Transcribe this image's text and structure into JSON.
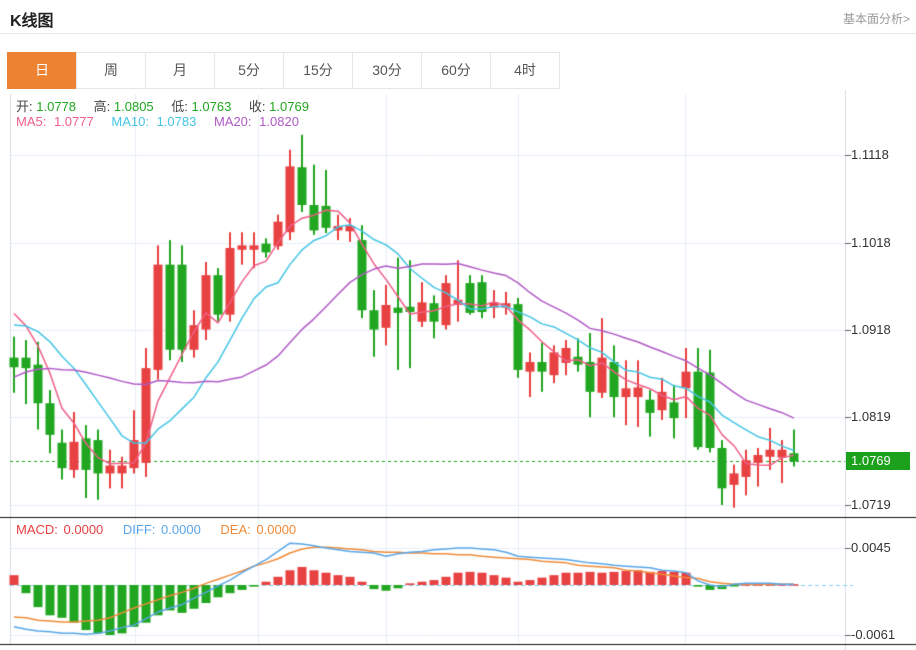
{
  "header": {
    "title": "K线图",
    "link": "基本面分析>"
  },
  "tabs": {
    "items": [
      {
        "label": "日",
        "active": true
      },
      {
        "label": "周",
        "active": false
      },
      {
        "label": "月",
        "active": false
      },
      {
        "label": "5分",
        "active": false
      },
      {
        "label": "15分",
        "active": false
      },
      {
        "label": "30分",
        "active": false
      },
      {
        "label": "60分",
        "active": false
      },
      {
        "label": "4时",
        "active": false
      }
    ]
  },
  "legend": {
    "ohlc": {
      "open_label": "开:",
      "open": "1.0778",
      "high_label": "高:",
      "high": "1.0805",
      "low_label": "低:",
      "low": "1.0763",
      "close_label": "收:",
      "close": "1.0769"
    },
    "ma": {
      "ma5_label": "MA5:",
      "ma5": "1.0777",
      "ma10_label": "MA10:",
      "ma10": "1.0783",
      "ma20_label": "MA20:",
      "ma20": "1.0820"
    }
  },
  "macd_legend": {
    "macd_label": "MACD:",
    "macd": "0.0000",
    "diff_label": "DIFF:",
    "diff": "0.0000",
    "dea_label": "DEA:",
    "dea": "0.0000"
  },
  "colors": {
    "up_red": "#e84141",
    "down_green": "#21a621",
    "badge_green": "#1ba11b",
    "ma5_pink": "#ef5f87",
    "ma10_cyan": "#45c5e5",
    "ma20_purple": "#b05ac6",
    "diff_blue": "#58a6e8",
    "dea_orange": "#ef8b3a",
    "tab_orange": "#ee8233",
    "grid": "#e9eef6",
    "axis": "#d9dde3",
    "zero_dash": "#8fcdf2",
    "separator": "#111111"
  },
  "chart_data": {
    "type": "candlestick+macd",
    "price_axis": {
      "ticks": [
        1.1118,
        1.1018,
        1.0918,
        1.0819,
        1.0719
      ],
      "top_value": 1.1118,
      "bottom_value": 1.0719,
      "current_price": 1.0769
    },
    "ma_periods": [
      5,
      10,
      20
    ],
    "prehistory_closes": [
      1.076,
      1.077,
      1.078,
      1.079,
      1.08,
      1.081,
      1.082,
      1.083,
      1.084,
      1.0855,
      1.0885,
      1.09,
      1.0915,
      1.0925,
      1.093,
      1.0945,
      1.095,
      1.0955,
      1.096
    ],
    "candles": [
      [
        1.0887,
        1.0911,
        1.0847,
        1.0876
      ],
      [
        1.0887,
        1.0907,
        1.0834,
        1.0875
      ],
      [
        1.0879,
        1.0905,
        1.0805,
        1.0835
      ],
      [
        1.0835,
        1.085,
        1.0778,
        1.0799
      ],
      [
        1.079,
        1.0805,
        1.0748,
        1.0761
      ],
      [
        1.0759,
        1.0825,
        1.075,
        1.0791
      ],
      [
        1.0795,
        1.081,
        1.0727,
        1.0759
      ],
      [
        1.0793,
        1.0805,
        1.0725,
        1.0755
      ],
      [
        1.0755,
        1.0782,
        1.0738,
        1.0764
      ],
      [
        1.0755,
        1.0774,
        1.0738,
        1.0764
      ],
      [
        1.0761,
        1.0827,
        1.0755,
        1.0793
      ],
      [
        1.0767,
        1.0898,
        1.0751,
        1.0875
      ],
      [
        1.0873,
        1.1015,
        1.0862,
        1.0993
      ],
      [
        1.0993,
        1.1021,
        1.0884,
        1.0896
      ],
      [
        1.0993,
        1.1015,
        1.0882,
        1.0896
      ],
      [
        1.0896,
        1.0941,
        1.0887,
        1.0924
      ],
      [
        1.0919,
        1.0996,
        1.0907,
        1.0981
      ],
      [
        1.0981,
        1.0989,
        1.0928,
        1.0936
      ],
      [
        1.0936,
        1.103,
        1.0928,
        1.1012
      ],
      [
        1.101,
        1.103,
        1.0993,
        1.1015
      ],
      [
        1.101,
        1.103,
        1.0989,
        1.1015
      ],
      [
        1.1017,
        1.1023,
        1.1001,
        1.1007
      ],
      [
        1.1014,
        1.105,
        1.101,
        1.1042
      ],
      [
        1.103,
        1.1124,
        1.1021,
        1.1105
      ],
      [
        1.1104,
        1.1141,
        1.1053,
        1.1061
      ],
      [
        1.1061,
        1.1107,
        1.1027,
        1.1032
      ],
      [
        1.106,
        1.1101,
        1.1029,
        1.1035
      ],
      [
        1.1032,
        1.105,
        1.1021,
        1.1037
      ],
      [
        1.1031,
        1.1046,
        1.1019,
        1.1037
      ],
      [
        1.1021,
        1.1038,
        1.0932,
        1.0941
      ],
      [
        1.0941,
        1.0964,
        1.0888,
        1.0919
      ],
      [
        1.0921,
        1.097,
        1.0901,
        1.0947
      ],
      [
        1.0944,
        1.1001,
        1.0873,
        1.0938
      ],
      [
        1.0945,
        1.0998,
        1.0875,
        1.0939
      ],
      [
        1.0928,
        1.0973,
        1.0922,
        1.095
      ],
      [
        1.0949,
        1.0958,
        1.0909,
        1.0928
      ],
      [
        1.0924,
        1.0981,
        1.0919,
        1.0972
      ],
      [
        1.0947,
        1.0998,
        1.0928,
        1.0953
      ],
      [
        1.0972,
        1.0981,
        1.0936,
        1.0938
      ],
      [
        1.0973,
        1.0981,
        1.0932,
        1.0939
      ],
      [
        1.0944,
        1.0964,
        1.0932,
        1.095
      ],
      [
        1.0944,
        1.0962,
        1.0936,
        1.0949
      ],
      [
        1.0948,
        1.0955,
        1.0864,
        1.0873
      ],
      [
        1.0871,
        1.0893,
        1.0842,
        1.0882
      ],
      [
        1.0882,
        1.0904,
        1.0848,
        1.0871
      ],
      [
        1.0867,
        1.0901,
        1.0858,
        1.0893
      ],
      [
        1.0881,
        1.0907,
        1.0867,
        1.0898
      ],
      [
        1.0888,
        1.0909,
        1.0871,
        1.0879
      ],
      [
        1.0882,
        1.0915,
        1.0819,
        1.0848
      ],
      [
        1.0847,
        1.0932,
        1.0841,
        1.0887
      ],
      [
        1.0882,
        1.0901,
        1.0819,
        1.0842
      ],
      [
        1.0842,
        1.0884,
        1.081,
        1.0852
      ],
      [
        1.0842,
        1.0884,
        1.0808,
        1.0853
      ],
      [
        1.0839,
        1.085,
        1.0797,
        1.0824
      ],
      [
        1.0827,
        1.0864,
        1.0816,
        1.0848
      ],
      [
        1.0836,
        1.0856,
        1.0795,
        1.0818
      ],
      [
        1.0852,
        1.0898,
        1.0818,
        1.0871
      ],
      [
        1.0871,
        1.0898,
        1.0782,
        1.0785
      ],
      [
        1.087,
        1.0896,
        1.0779,
        1.0784
      ],
      [
        1.0784,
        1.0793,
        1.0719,
        1.0738
      ],
      [
        1.0742,
        1.0765,
        1.0716,
        1.0755
      ],
      [
        1.0751,
        1.0782,
        1.073,
        1.077
      ],
      [
        1.0767,
        1.0784,
        1.074,
        1.0776
      ],
      [
        1.0774,
        1.0807,
        1.0759,
        1.0782
      ],
      [
        1.0773,
        1.0793,
        1.0744,
        1.0782
      ],
      [
        1.0778,
        1.0805,
        1.0763,
        1.0769
      ]
    ],
    "macd": {
      "ticks": [
        0.0045,
        -0.0061
      ],
      "hist": [
        0.0012,
        -0.001,
        -0.0027,
        -0.0037,
        -0.004,
        -0.0046,
        -0.0055,
        -0.0059,
        -0.0061,
        -0.0059,
        -0.0051,
        -0.0046,
        -0.0037,
        -0.0031,
        -0.0034,
        -0.0029,
        -0.0022,
        -0.0015,
        -0.001,
        -0.0006,
        -0.0002,
        0.0004,
        0.001,
        0.0018,
        0.0022,
        0.0018,
        0.0015,
        0.0012,
        0.001,
        0.0004,
        -0.0005,
        -0.0007,
        -0.0004,
        0.0002,
        0.0004,
        0.0006,
        0.001,
        0.0015,
        0.0016,
        0.0015,
        0.0012,
        0.0009,
        0.0004,
        0.0006,
        0.0009,
        0.0012,
        0.0015,
        0.0015,
        0.0016,
        0.0015,
        0.0016,
        0.0017,
        0.0018,
        0.0016,
        0.0017,
        0.0016,
        0.0015,
        -0.0002,
        -0.0006,
        -0.0005,
        -0.0001,
        0.0001,
        0.0001,
        0.0001,
        0.0001,
        0.0001
      ],
      "diff": [
        -0.0051,
        -0.0054,
        -0.0056,
        -0.0057,
        -0.0059,
        -0.0059,
        -0.006,
        -0.0059,
        -0.0056,
        -0.0052,
        -0.0049,
        -0.0041,
        -0.0033,
        -0.0028,
        -0.0024,
        -0.0016,
        -0.0009,
        -0.0001,
        0.0006,
        0.0015,
        0.0023,
        0.0031,
        0.0041,
        0.0051,
        0.005,
        0.0048,
        0.0045,
        0.0043,
        0.0041,
        0.004,
        0.0039,
        0.0035,
        0.0038,
        0.004,
        0.0041,
        0.0043,
        0.0044,
        0.0045,
        0.0045,
        0.0044,
        0.0043,
        0.004,
        0.0035,
        0.0034,
        0.0033,
        0.0032,
        0.0031,
        0.0029,
        0.0027,
        0.0026,
        0.0024,
        0.0023,
        0.0022,
        0.0021,
        0.0018,
        0.0017,
        0.0015,
        0.0005,
        0.0,
        -0.0002,
        0.0001,
        0.0002,
        0.0002,
        0.0002,
        0.0001,
        0.0001
      ],
      "dea": [
        -0.0039,
        -0.004,
        -0.0043,
        -0.0044,
        -0.0045,
        -0.0045,
        -0.0044,
        -0.0043,
        -0.004,
        -0.0034,
        -0.0028,
        -0.0023,
        -0.0018,
        -0.0013,
        -0.0009,
        -0.0004,
        0.0002,
        0.0007,
        0.0012,
        0.0017,
        0.0023,
        0.0027,
        0.0032,
        0.0039,
        0.0044,
        0.0046,
        0.0046,
        0.0045,
        0.0044,
        0.0043,
        0.0041,
        0.004,
        0.004,
        0.0039,
        0.0039,
        0.0038,
        0.0038,
        0.0037,
        0.0037,
        0.0035,
        0.0034,
        0.0033,
        0.0032,
        0.0031,
        0.0029,
        0.0028,
        0.0027,
        0.0024,
        0.0023,
        0.0022,
        0.0021,
        0.0018,
        0.0017,
        0.0015,
        0.0013,
        0.0011,
        0.0009,
        0.0008,
        0.0004,
        0.0002,
        0.0001,
        0.0001,
        0.0001,
        0.0001,
        0.0001,
        0.0001
      ]
    }
  }
}
